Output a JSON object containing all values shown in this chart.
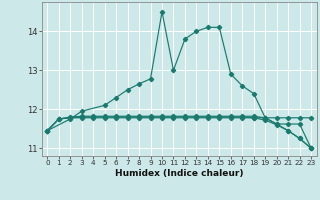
{
  "title": "",
  "xlabel": "Humidex (Indice chaleur)",
  "ylabel": "",
  "bg_color": "#cce8e8",
  "line_color": "#1a7a6e",
  "grid_color": "#ffffff",
  "xlim": [
    -0.5,
    23.5
  ],
  "ylim": [
    10.8,
    14.75
  ],
  "yticks": [
    11,
    12,
    13,
    14
  ],
  "xticks": [
    0,
    1,
    2,
    3,
    4,
    5,
    6,
    7,
    8,
    9,
    10,
    11,
    12,
    13,
    14,
    15,
    16,
    17,
    18,
    19,
    20,
    21,
    22,
    23
  ],
  "series": [
    {
      "x": [
        0,
        1,
        2,
        3,
        4,
        5,
        6,
        7,
        8,
        9,
        10,
        11,
        12,
        13,
        14,
        15,
        16,
        17,
        18,
        19,
        20,
        21,
        22,
        23
      ],
      "y": [
        11.45,
        11.75,
        11.78,
        11.78,
        11.78,
        11.78,
        11.78,
        11.78,
        11.78,
        11.78,
        11.78,
        11.78,
        11.78,
        11.78,
        11.78,
        11.78,
        11.78,
        11.78,
        11.78,
        11.78,
        11.78,
        11.78,
        11.78,
        11.78
      ]
    },
    {
      "x": [
        0,
        1,
        2,
        3,
        4,
        5,
        6,
        7,
        8,
        9,
        10,
        11,
        12,
        13,
        14,
        15,
        16,
        17,
        18,
        19,
        20,
        21,
        22,
        23
      ],
      "y": [
        11.45,
        11.75,
        11.78,
        11.8,
        11.8,
        11.8,
        11.8,
        11.8,
        11.8,
        11.8,
        11.8,
        11.8,
        11.8,
        11.8,
        11.8,
        11.8,
        11.8,
        11.8,
        11.78,
        11.72,
        11.6,
        11.45,
        11.25,
        11.0
      ]
    },
    {
      "x": [
        0,
        1,
        2,
        3,
        4,
        5,
        6,
        7,
        8,
        9,
        10,
        11,
        12,
        13,
        14,
        15,
        16,
        17,
        18,
        19,
        20,
        21,
        22,
        23
      ],
      "y": [
        11.45,
        11.75,
        11.8,
        11.82,
        11.82,
        11.82,
        11.82,
        11.82,
        11.82,
        11.82,
        11.82,
        11.82,
        11.82,
        11.82,
        11.82,
        11.82,
        11.82,
        11.82,
        11.82,
        11.78,
        11.62,
        11.45,
        11.25,
        11.0
      ]
    },
    {
      "x": [
        0,
        2,
        3,
        5,
        6,
        7,
        8,
        9,
        10,
        11,
        12,
        13,
        14,
        15,
        16,
        17,
        18,
        19,
        20,
        21,
        22,
        23
      ],
      "y": [
        11.45,
        11.75,
        11.95,
        12.1,
        12.3,
        12.5,
        12.65,
        12.78,
        14.5,
        13.0,
        13.8,
        14.0,
        14.1,
        14.1,
        12.9,
        12.6,
        12.4,
        11.78,
        11.62,
        11.62,
        11.62,
        11.0
      ]
    }
  ]
}
